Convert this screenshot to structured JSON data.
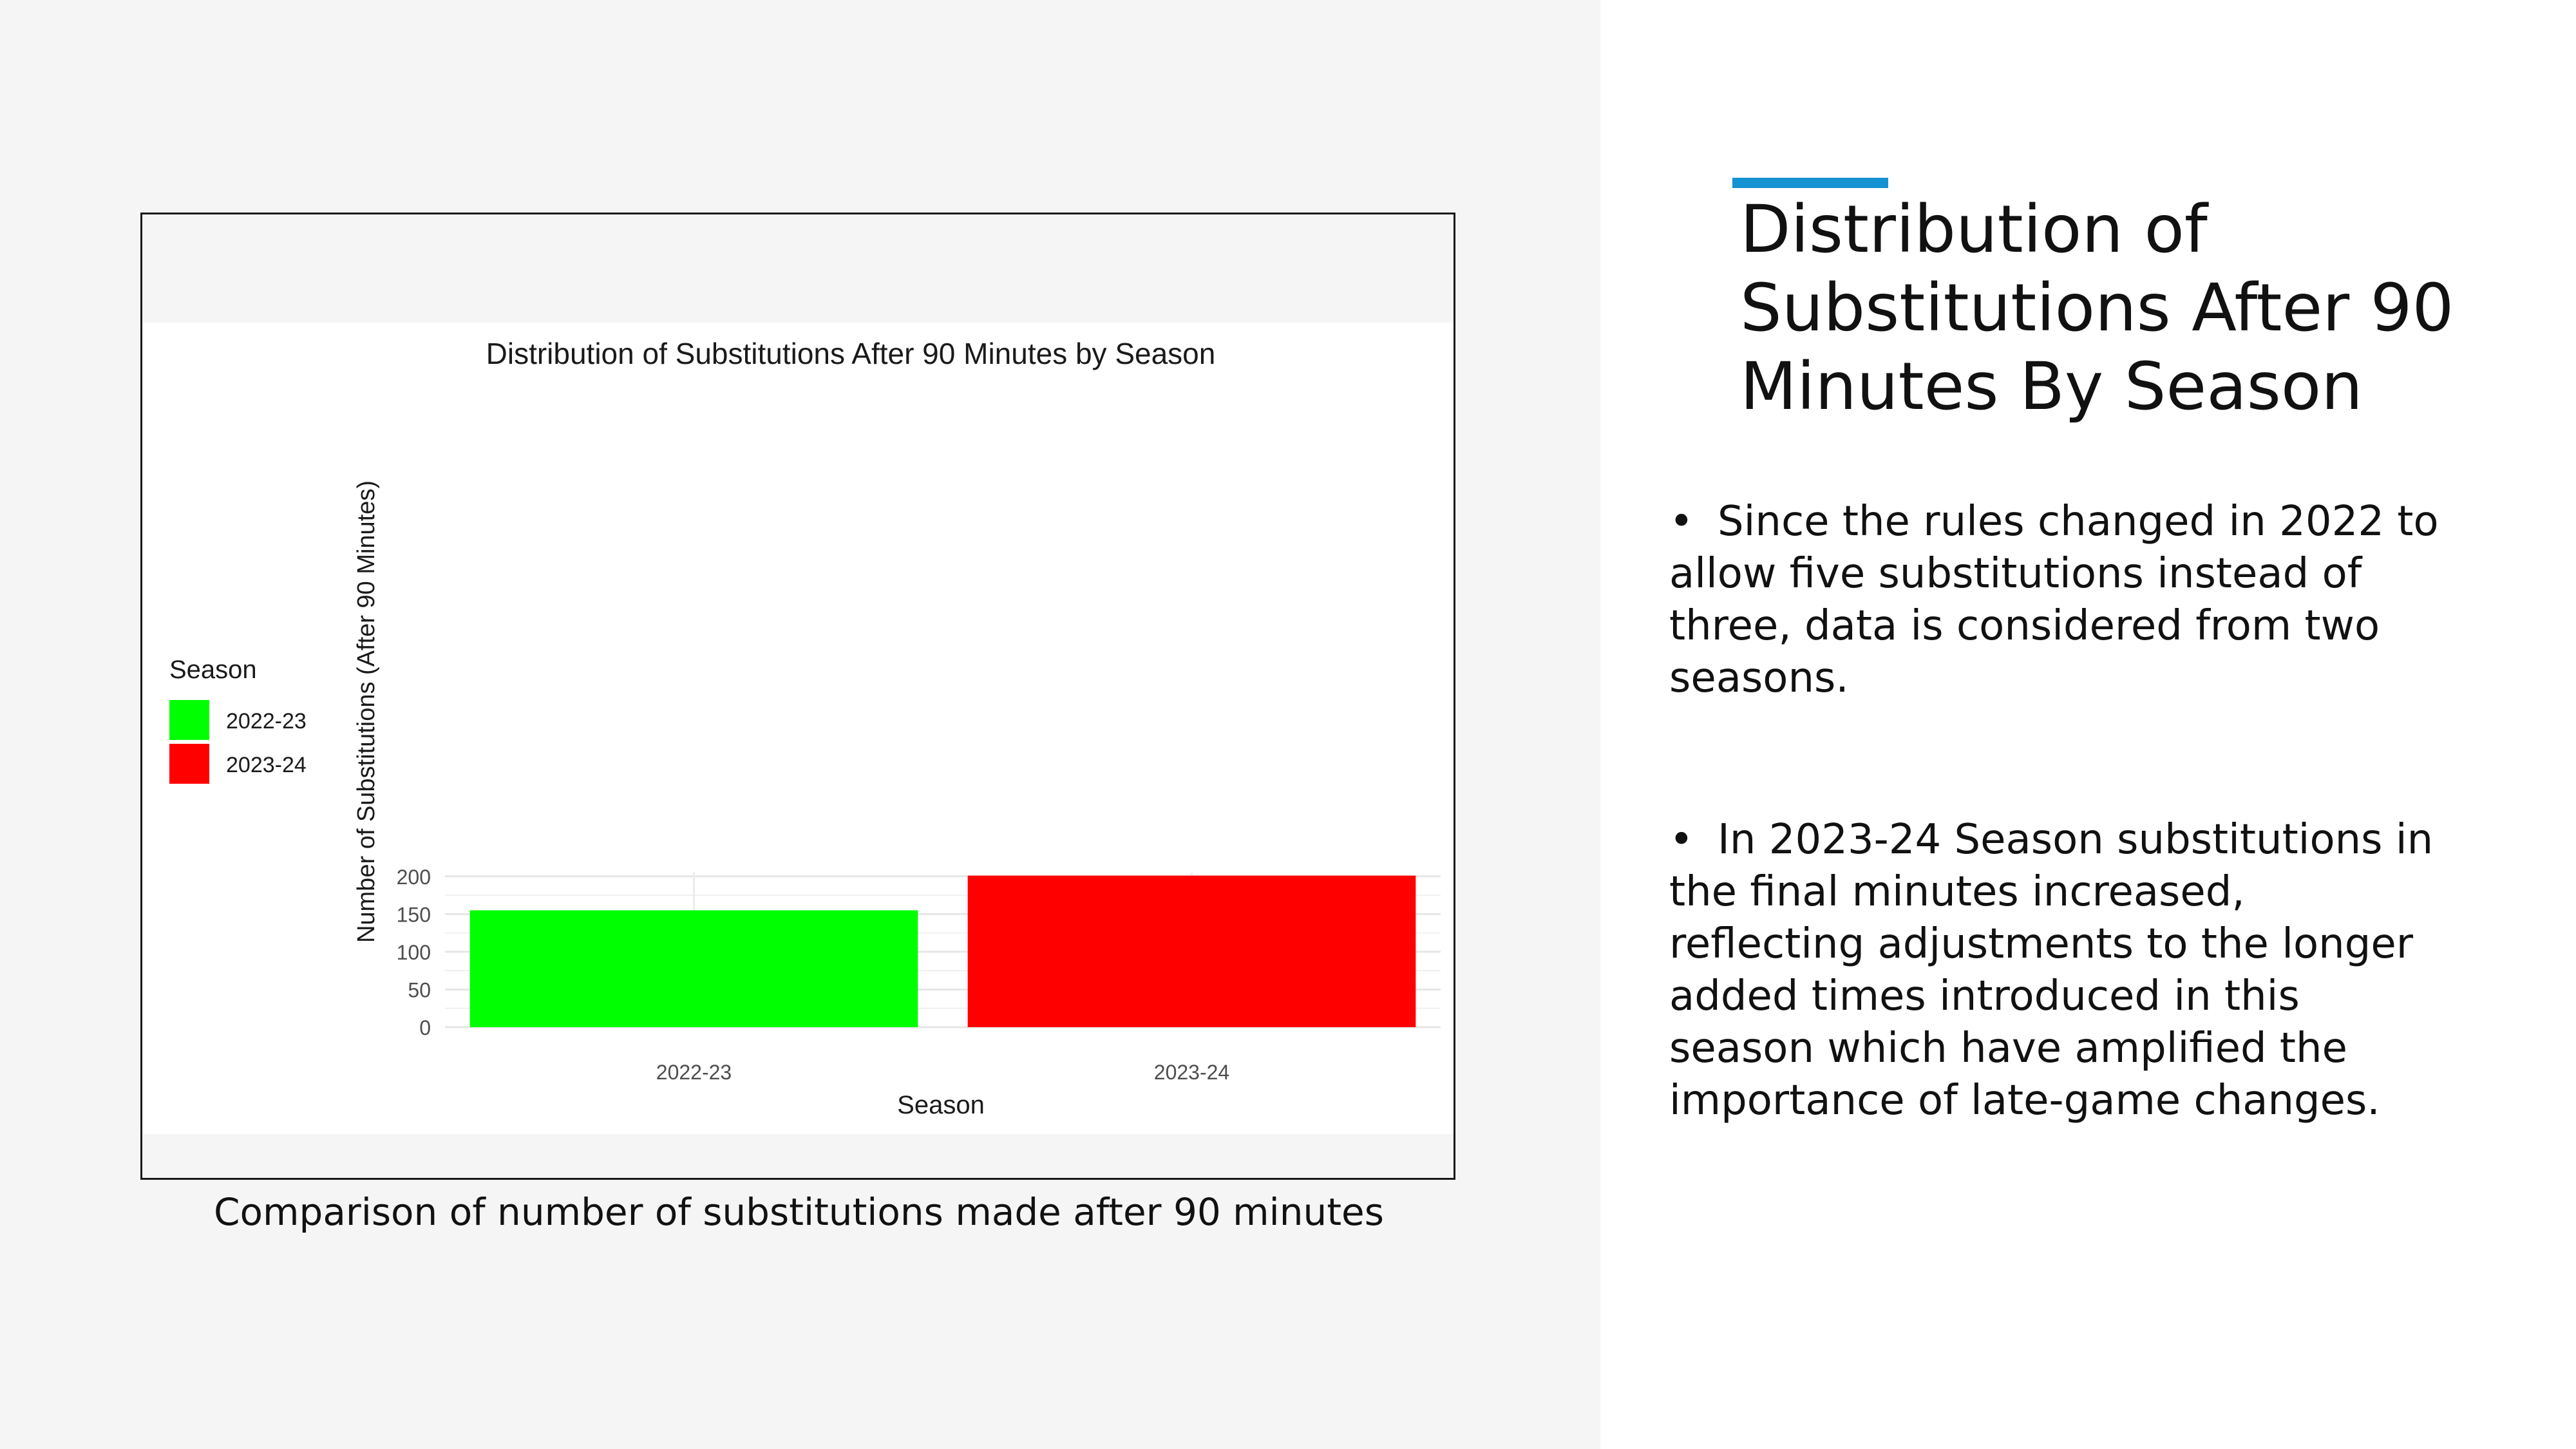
{
  "slide": {
    "title": "Distribution of Substitutions After 90 Minutes By Season",
    "caption": "Comparison of number of substitutions made after 90 minutes",
    "accent_color": "#1592d1",
    "bullets": [
      "Since the rules changed in 2022 to allow five substitutions instead of three, data is considered from two seasons.",
      "In 2023-24 Season substitutions in the final minutes increased, reflecting adjustments to the longer added times introduced in this season which have amplified the importance of late-game changes."
    ]
  },
  "chart_data": {
    "type": "bar",
    "title": "Distribution of Substitutions After 90 Minutes by Season",
    "xlabel": "Season",
    "ylabel": "Number of Substitutions (After 90 Minutes)",
    "categories": [
      "2022-23",
      "2023-24"
    ],
    "values": [
      155,
      201
    ],
    "colors": [
      "#00ff00",
      "#ff0000"
    ],
    "ylim": [
      0,
      205
    ],
    "yticks": [
      0,
      50,
      100,
      150,
      200
    ],
    "grid": true,
    "legend": {
      "title": "Season",
      "position": "left",
      "entries": [
        "2022-23",
        "2023-24"
      ]
    }
  }
}
